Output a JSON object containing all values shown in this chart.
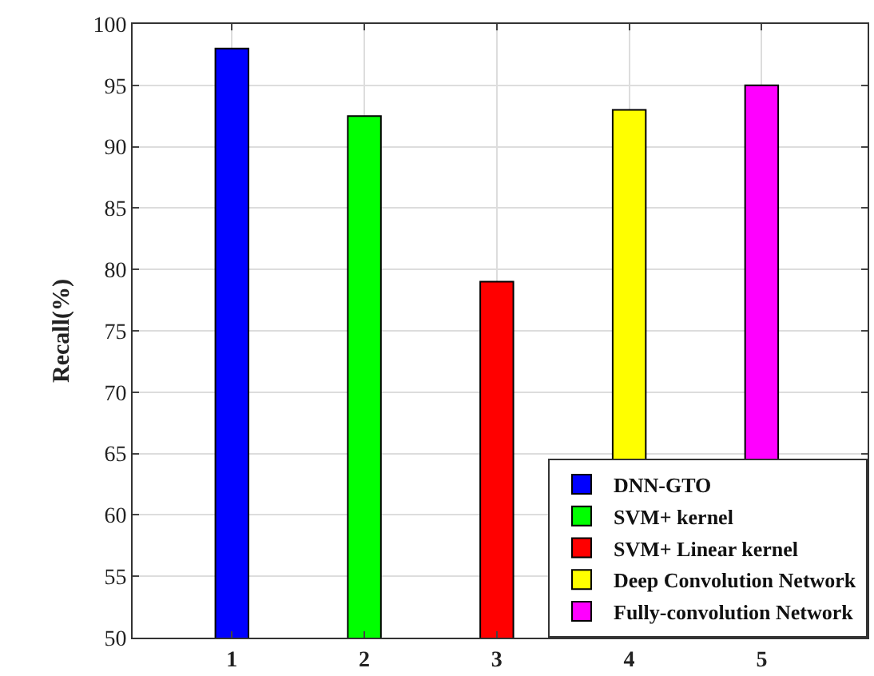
{
  "chart_data": {
    "type": "bar",
    "ylabel": "Recall(%)",
    "series": [
      {
        "name": "DNN-GTO",
        "color": "#0000ff",
        "x": [
          1
        ],
        "values": [
          98
        ]
      },
      {
        "name": "SVM+ kernel",
        "color": "#00ff00",
        "x": [
          2
        ],
        "values": [
          92.5
        ]
      },
      {
        "name": "SVM+ Linear kernel",
        "color": "#ff0000",
        "x": [
          3
        ],
        "values": [
          79
        ]
      },
      {
        "name": "Deep Convolution Network",
        "color": "#ffff00",
        "x": [
          4
        ],
        "values": [
          93
        ]
      },
      {
        "name": "Fully-convolution Network",
        "color": "#ff00ff",
        "x": [
          5
        ],
        "values": [
          95
        ]
      }
    ],
    "xlim": [
      0.25,
      5.8
    ],
    "xticks": [
      1,
      2,
      3,
      4,
      5
    ],
    "ylim": [
      50,
      100
    ],
    "yticks": [
      50,
      55,
      60,
      65,
      70,
      75,
      80,
      85,
      90,
      95,
      100
    ],
    "grid": true,
    "legend": "bottom right"
  }
}
